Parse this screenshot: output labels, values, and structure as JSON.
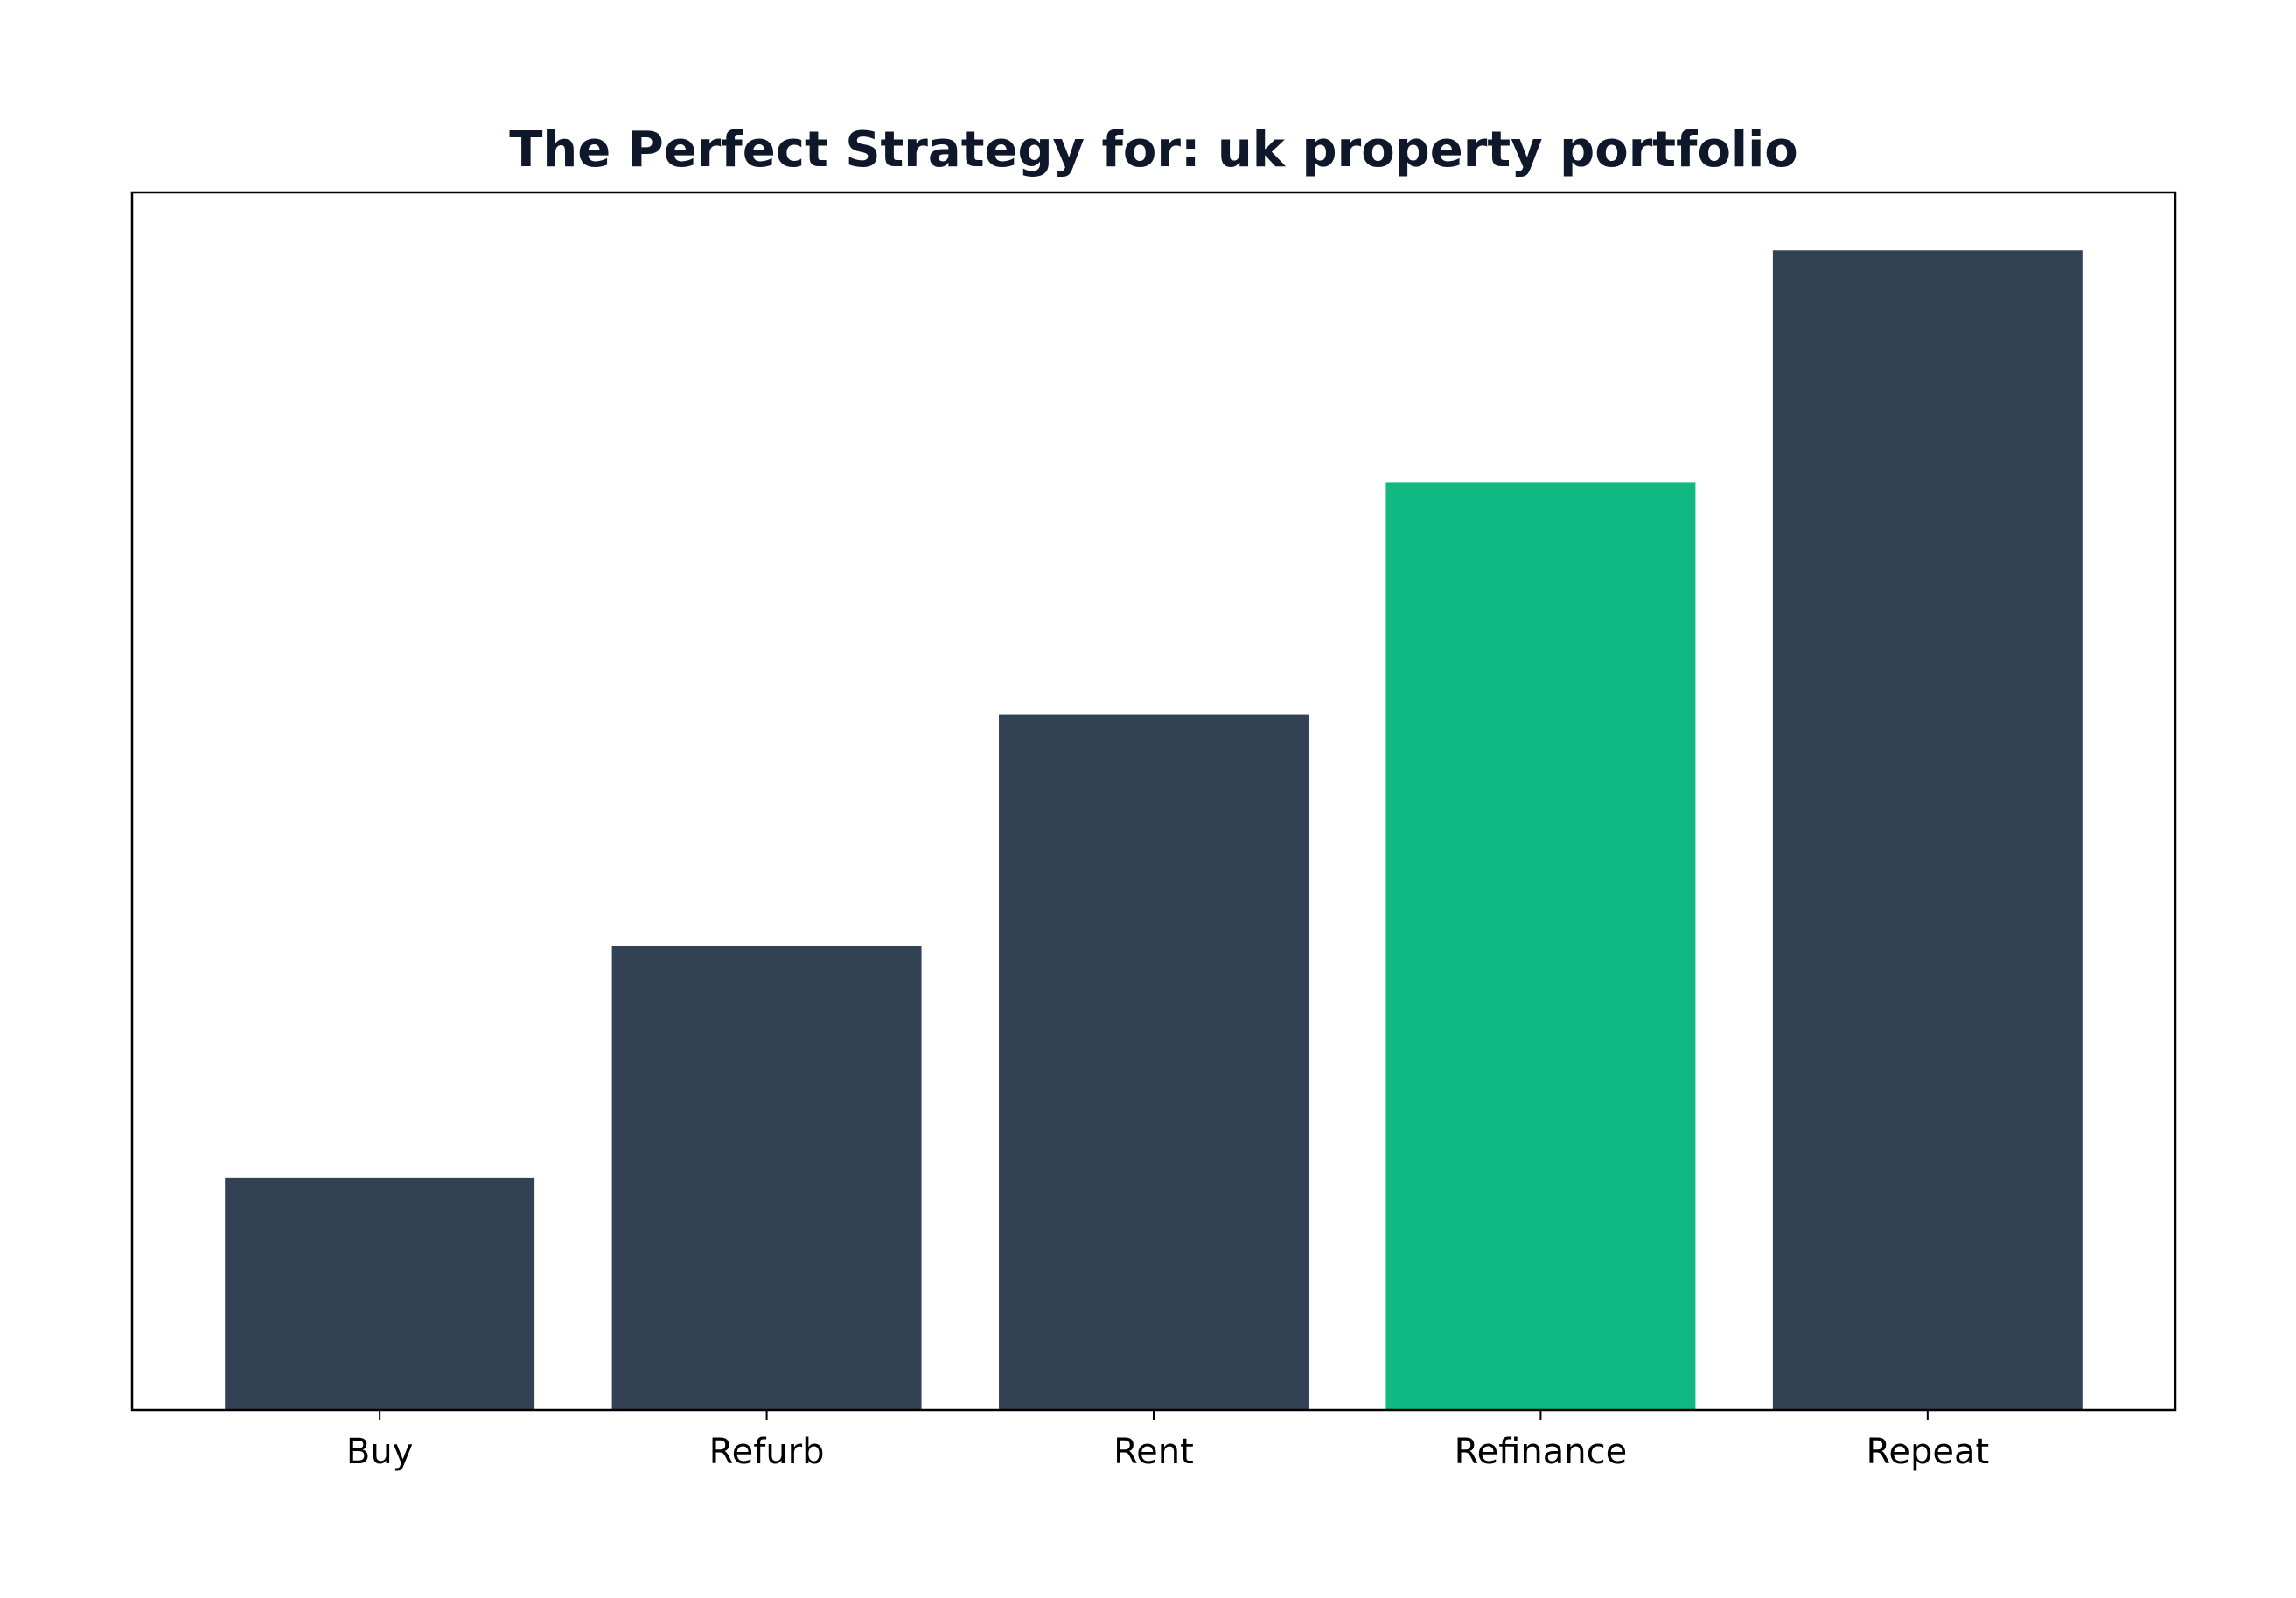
{
  "chart_data": {
    "type": "bar",
    "title": "The Perfect Strategy for: uk property portfolio",
    "categories": [
      "Buy",
      "Refurb",
      "Rent",
      "Refinance",
      "Repeat"
    ],
    "values": [
      1,
      2,
      3,
      4,
      5
    ],
    "colors": [
      "#334155",
      "#334155",
      "#334155",
      "#10b981",
      "#334155"
    ],
    "ylim": [
      0,
      5.25
    ]
  }
}
